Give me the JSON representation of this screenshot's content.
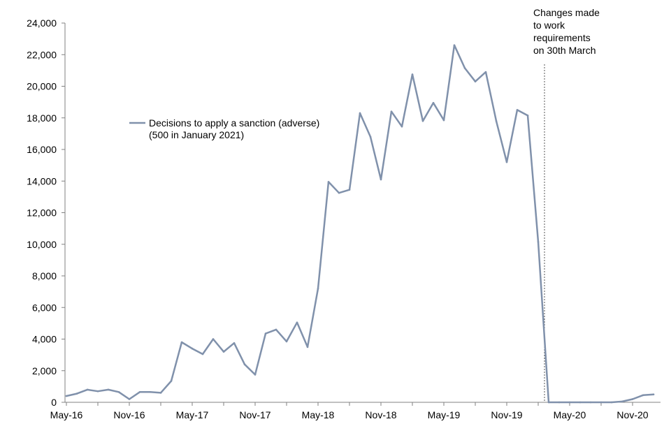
{
  "chart_data": {
    "type": "line",
    "title": "",
    "xlabel": "",
    "ylabel": "",
    "ylim": [
      0,
      24000
    ],
    "y_ticks": [
      0,
      2000,
      4000,
      6000,
      8000,
      10000,
      12000,
      14000,
      16000,
      18000,
      20000,
      22000,
      24000
    ],
    "y_tick_labels": [
      "0",
      "2,000",
      "4,000",
      "6,000",
      "8,000",
      "10,000",
      "12,000",
      "14,000",
      "16,000",
      "18,000",
      "20,000",
      "22,000",
      "24,000"
    ],
    "x_tick_labels": [
      {
        "label": "May-16",
        "index": 0
      },
      {
        "label": "Nov-16",
        "index": 6
      },
      {
        "label": "May-17",
        "index": 12
      },
      {
        "label": "Nov-17",
        "index": 18
      },
      {
        "label": "May-18",
        "index": 24
      },
      {
        "label": "Nov-18",
        "index": 30
      },
      {
        "label": "May-19",
        "index": 36
      },
      {
        "label": "Nov-19",
        "index": 42
      },
      {
        "label": "May-20",
        "index": 48
      },
      {
        "label": "Nov-20",
        "index": 54
      }
    ],
    "grid": false,
    "series": [
      {
        "name": "Decisions to apply a sanction (adverse)",
        "note": "(500 in January 2021)",
        "color": "#8091ab",
        "values": [
          400,
          550,
          800,
          700,
          800,
          650,
          200,
          650,
          650,
          600,
          1350,
          3800,
          3400,
          3050,
          4000,
          3200,
          3750,
          2400,
          1750,
          4350,
          4600,
          3850,
          5050,
          3500,
          7200,
          13950,
          13250,
          13450,
          18300,
          16800,
          14100,
          18400,
          17450,
          20750,
          17800,
          18950,
          17850,
          22600,
          21150,
          20300,
          20900,
          17800,
          15200,
          18500,
          18150,
          10150,
          0,
          0,
          0,
          0,
          0,
          0,
          0,
          50,
          200,
          450,
          500
        ]
      }
    ],
    "legend_position": "upper-left",
    "annotations": [
      {
        "lines": [
          "Changes made",
          "to work",
          "requirements",
          "on 30th March"
        ],
        "at_index": 45.6,
        "style": "dotted-vertical-line"
      }
    ]
  }
}
